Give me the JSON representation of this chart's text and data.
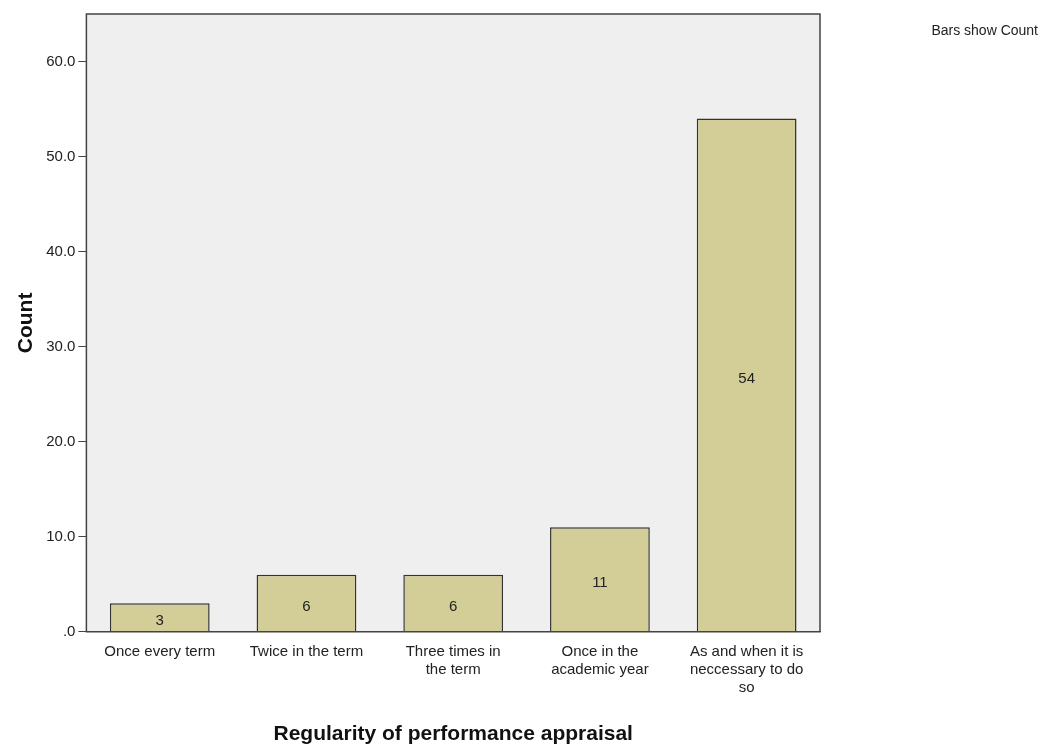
{
  "chart_data": {
    "type": "bar",
    "xlabel": "Regularity of performance appraisal",
    "ylabel": "Count",
    "categories": [
      "Once every term",
      "Twice in the term",
      "Three times in the term",
      "Once in the academic year",
      "As and when it is neccessary to do so"
    ],
    "values": [
      3,
      6,
      6,
      11,
      54
    ],
    "color": "#d3ce97",
    "ylim": [
      0,
      65
    ],
    "yticks": [
      {
        "value": 0,
        "label": ".0"
      },
      {
        "value": 10,
        "label": "10.0"
      },
      {
        "value": 20,
        "label": "20.0"
      },
      {
        "value": 30,
        "label": "30.0"
      },
      {
        "value": 40,
        "label": "40.0"
      },
      {
        "value": 50,
        "label": "50.0"
      },
      {
        "value": 60,
        "label": "60.0"
      }
    ],
    "grid": false,
    "data_labels": true,
    "annotations": [
      "Bars show Count"
    ]
  }
}
